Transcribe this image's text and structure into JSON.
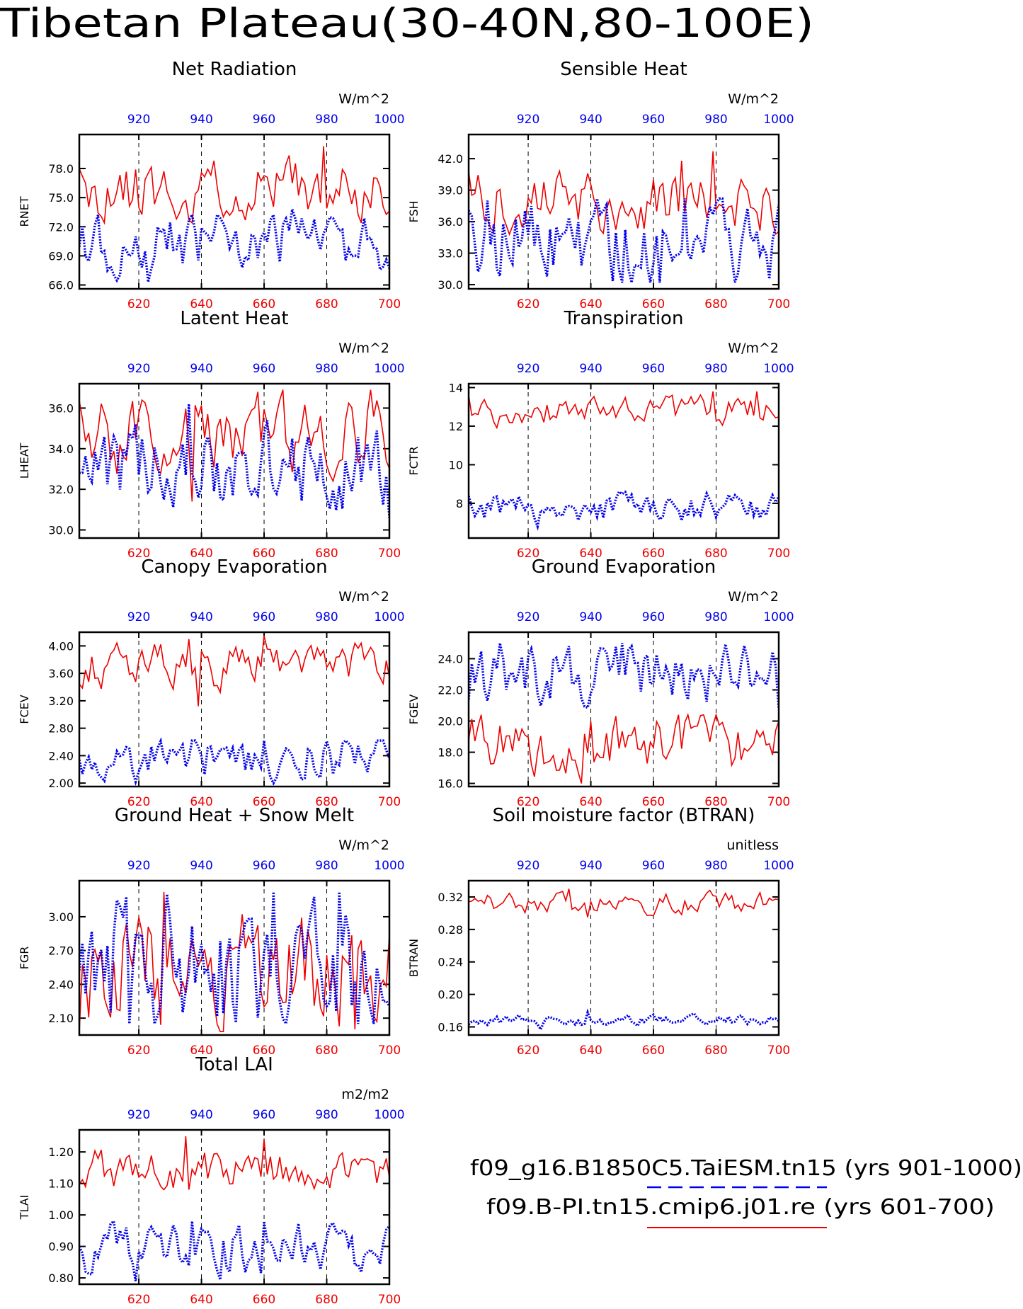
{
  "figure": {
    "title": "Tibetan Plateau(30-40N,80-100E)",
    "legend": {
      "blue_label": "f09_g16.B1850C5.TaiESM.tn15 (yrs 901-1000)",
      "red_label": "f09.B-PI.tn15.cmip6.j01.re (yrs 601-700)"
    },
    "colors": {
      "red": "#ee0000",
      "blue": "#0000ee",
      "axis": "#000000"
    },
    "top_axis_ticks": [
      920,
      940,
      960,
      980,
      1000
    ],
    "bottom_axis_ticks": [
      620,
      640,
      660,
      680,
      700
    ]
  },
  "chart_data": [
    {
      "type": "line",
      "title": "Net Radiation",
      "ylabel": "RNET",
      "units": "W/m^2",
      "yticks": [
        "66.0",
        "69.0",
        "72.0",
        "75.0",
        "78.0"
      ],
      "ylim": [
        65.6,
        81.5
      ],
      "series": [
        {
          "color": "red",
          "mean": 75.6,
          "amp": 1.5,
          "min": 72.4,
          "max": 80.3,
          "seed": 11,
          "peaks": [
            [
              679,
              80.3
            ],
            [
              644,
              78.8
            ],
            [
              602,
              77.2
            ]
          ]
        },
        {
          "color": "blue",
          "mean": 70.5,
          "amp": 1.5,
          "min": 66.3,
          "max": 73.8,
          "seed": 12,
          "peaks": [
            [
              623,
              66.3
            ],
            [
              669,
              73.8
            ],
            [
              607,
              73.2
            ]
          ]
        }
      ]
    },
    {
      "type": "line",
      "title": "Sensible Heat",
      "ylabel": "FSH",
      "units": "W/m^2",
      "yticks": [
        "30.0",
        "33.0",
        "36.0",
        "39.0",
        "42.0"
      ],
      "ylim": [
        29.6,
        44.3
      ],
      "series": [
        {
          "color": "red",
          "mean": 37.8,
          "amp": 1.3,
          "min": 34.8,
          "max": 42.7,
          "seed": 21,
          "peaks": [
            [
              679,
              42.7
            ],
            [
              669,
              41.8
            ],
            [
              601,
              40.8
            ]
          ]
        },
        {
          "color": "blue",
          "mean": 34.2,
          "amp": 1.9,
          "min": 30.2,
          "max": 38.2,
          "seed": 22,
          "peaks": [
            [
              662,
              30.2
            ],
            [
              670,
              38.2
            ],
            [
              607,
              38.0
            ]
          ]
        }
      ]
    },
    {
      "type": "line",
      "title": "Latent Heat",
      "ylabel": "LHEAT",
      "units": "W/m^2",
      "yticks": [
        "30.0",
        "32.0",
        "34.0",
        "36.0"
      ],
      "ylim": [
        29.6,
        37.2
      ],
      "series": [
        {
          "color": "red",
          "mean": 34.8,
          "amp": 0.9,
          "min": 31.4,
          "max": 36.9,
          "seed": 31,
          "peaks": [
            [
              637,
              31.4
            ],
            [
              694,
              36.9
            ],
            [
              658,
              36.8
            ]
          ]
        },
        {
          "color": "blue",
          "mean": 33.0,
          "amp": 0.9,
          "min": 30.6,
          "max": 36.2,
          "seed": 32,
          "peaks": [
            [
              700,
              30.6
            ],
            [
              636,
              36.2
            ],
            [
              661,
              35.4
            ]
          ]
        }
      ]
    },
    {
      "type": "line",
      "title": "Transpiration",
      "ylabel": "FCTR",
      "units": "W/m^2",
      "yticks": [
        "8",
        "10",
        "12",
        "14"
      ],
      "ylim": [
        6.2,
        14.2
      ],
      "series": [
        {
          "color": "red",
          "mean": 12.8,
          "amp": 0.35,
          "min": 11.8,
          "max": 13.8,
          "seed": 41,
          "peaks": [
            [
              600,
              13.6
            ],
            [
              679,
              13.8
            ],
            [
              693,
              13.8
            ]
          ]
        },
        {
          "color": "blue",
          "mean": 7.8,
          "amp": 0.35,
          "min": 6.8,
          "max": 8.6,
          "seed": 42,
          "peaks": [
            [
              623,
              6.8
            ],
            [
              649,
              8.6
            ]
          ]
        }
      ]
    },
    {
      "type": "line",
      "title": "Canopy Evaporation",
      "ylabel": "FCEV",
      "units": "W/m^2",
      "yticks": [
        "2.00",
        "2.40",
        "2.80",
        "3.20",
        "3.60",
        "4.00"
      ],
      "ylim": [
        1.95,
        4.2
      ],
      "series": [
        {
          "color": "red",
          "mean": 3.7,
          "amp": 0.15,
          "min": 3.12,
          "max": 4.15,
          "seed": 51,
          "peaks": [
            [
              639,
              3.12
            ],
            [
              660,
              4.15
            ],
            [
              636,
              4.1
            ]
          ]
        },
        {
          "color": "blue",
          "mean": 2.35,
          "amp": 0.15,
          "min": 2.0,
          "max": 2.62,
          "seed": 52,
          "peaks": [
            [
              619,
              2.02
            ],
            [
              660,
              2.62
            ]
          ]
        }
      ]
    },
    {
      "type": "line",
      "title": "Ground Evaporation",
      "ylabel": "FGEV",
      "units": "W/m^2",
      "yticks": [
        "16.0",
        "18.0",
        "20.0",
        "22.0",
        "24.0"
      ],
      "ylim": [
        15.8,
        25.7
      ],
      "series": [
        {
          "color": "red",
          "mean": 18.6,
          "amp": 0.9,
          "min": 16.0,
          "max": 20.4,
          "seed": 61,
          "peaks": [
            [
              637,
              16.0
            ],
            [
              605,
              20.4
            ],
            [
              640,
              20.0
            ]
          ]
        },
        {
          "color": "blue",
          "mean": 23.0,
          "amp": 0.9,
          "min": 20.8,
          "max": 25.0,
          "seed": 62,
          "peaks": [
            [
              650,
              25.0
            ],
            [
              611,
              25.0
            ],
            [
              700,
              20.8
            ]
          ]
        }
      ]
    },
    {
      "type": "line",
      "title": "Ground Heat + Snow Melt",
      "ylabel": "FGR",
      "units": "W/m^2",
      "yticks": [
        "2.10",
        "2.40",
        "2.70",
        "3.00"
      ],
      "ylim": [
        1.95,
        3.32
      ],
      "series": [
        {
          "color": "red",
          "mean": 2.5,
          "amp": 0.25,
          "min": 1.98,
          "max": 3.22,
          "seed": 71,
          "peaks": [
            [
              601,
              1.98
            ],
            [
              628,
              3.22
            ],
            [
              689,
              2.0
            ]
          ]
        },
        {
          "color": "blue",
          "mean": 2.5,
          "amp": 0.28,
          "min": 2.05,
          "max": 3.22,
          "seed": 72,
          "peaks": [
            [
              629,
              3.2
            ],
            [
              663,
              3.22
            ],
            [
              684,
              3.22
            ],
            [
              617,
              2.05
            ]
          ]
        }
      ]
    },
    {
      "type": "line",
      "title": "Soil moisture factor (BTRAN)",
      "ylabel": "BTRAN",
      "units": "unitless",
      "yticks": [
        "0.16",
        "0.20",
        "0.24",
        "0.28",
        "0.32"
      ],
      "ylim": [
        0.15,
        0.34
      ],
      "series": [
        {
          "color": "red",
          "mean": 0.312,
          "amp": 0.006,
          "min": 0.295,
          "max": 0.33,
          "seed": 81,
          "peaks": [
            [
              633,
              0.33
            ],
            [
              639,
              0.295
            ]
          ]
        },
        {
          "color": "blue",
          "mean": 0.168,
          "amp": 0.003,
          "min": 0.157,
          "max": 0.178,
          "seed": 82,
          "peaks": [
            [
              624,
              0.157
            ],
            [
              639,
              0.178
            ]
          ]
        }
      ]
    },
    {
      "type": "line",
      "title": "Total LAI",
      "ylabel": "TLAI",
      "units": "m2/m2",
      "yticks": [
        "0.80",
        "0.90",
        "1.00",
        "1.10",
        "1.20"
      ],
      "ylim": [
        0.78,
        1.27
      ],
      "series": [
        {
          "color": "red",
          "mean": 1.14,
          "amp": 0.03,
          "min": 1.08,
          "max": 1.25,
          "seed": 91,
          "peaks": [
            [
              635,
              1.25
            ],
            [
              660,
              1.24
            ]
          ]
        },
        {
          "color": "blue",
          "mean": 0.89,
          "amp": 0.04,
          "min": 0.79,
          "max": 0.98,
          "seed": 92,
          "peaks": [
            [
              619,
              0.79
            ],
            [
              660,
              0.98
            ],
            [
              637,
              0.98
            ]
          ]
        }
      ]
    }
  ]
}
